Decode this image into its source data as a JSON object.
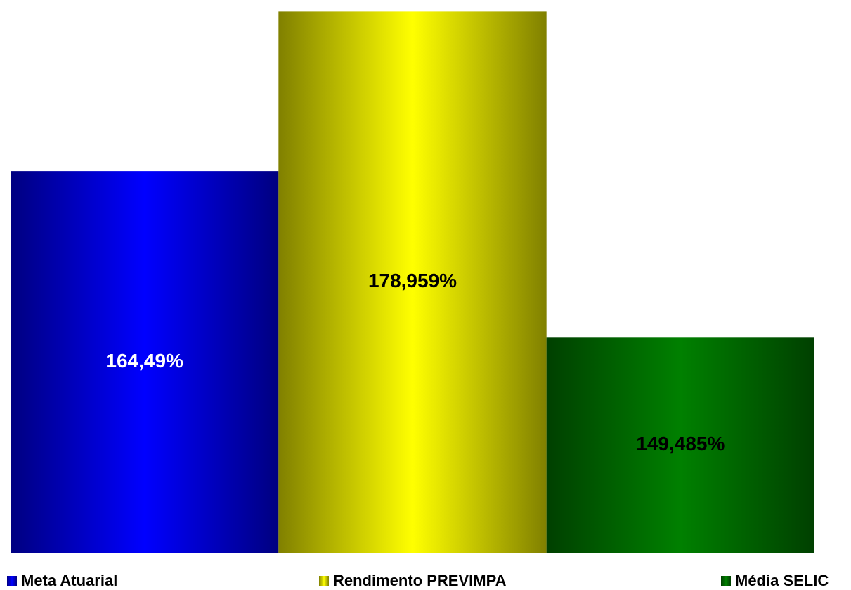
{
  "chart_data": {
    "type": "bar",
    "ylim": [
      130,
      180
    ],
    "series": [
      {
        "name": "Meta Atuarial",
        "color": "#0000ff",
        "edge_color": "#000080",
        "label_color": "#ffffff",
        "values": [
          164.49
        ],
        "value_labels": [
          "164,49%"
        ]
      },
      {
        "name": "Rendimento PREVIMPA",
        "color": "#ffff00",
        "edge_color": "#808000",
        "label_color": "#000000",
        "values": [
          178.959
        ],
        "value_labels": [
          "178,959%"
        ]
      },
      {
        "name": "Média SELIC",
        "color": "#008000",
        "edge_color": "#004000",
        "label_color": "#000000",
        "values": [
          149.485
        ],
        "value_labels": [
          "149,485%"
        ]
      }
    ]
  }
}
